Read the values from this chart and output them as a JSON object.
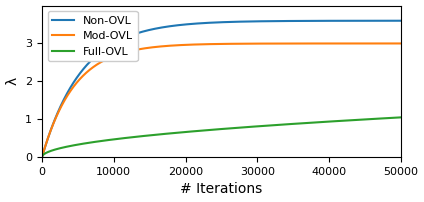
{
  "title": "",
  "xlabel": "# Iterations",
  "ylabel": "λ",
  "xlim": [
    0,
    50000
  ],
  "ylim": [
    0,
    4.0
  ],
  "yticks": [
    0,
    1,
    2,
    3
  ],
  "xticks": [
    0,
    10000,
    20000,
    30000,
    40000,
    50000
  ],
  "lines": [
    {
      "label": "Non-OVL",
      "color": "#1f77b4",
      "saturation": 3.6,
      "rate": 0.00018,
      "type": "log"
    },
    {
      "label": "Mod-OVL",
      "color": "#ff7f0e",
      "saturation": 3.0,
      "rate": 0.00022,
      "type": "log"
    },
    {
      "label": "Full-OVL",
      "color": "#2ca02c",
      "saturation": 1.05,
      "rate": 4e-05,
      "type": "sqrt"
    }
  ],
  "legend_loc": "upper left",
  "figsize": [
    4.24,
    2.02
  ],
  "dpi": 100,
  "background_color": "#ffffff"
}
